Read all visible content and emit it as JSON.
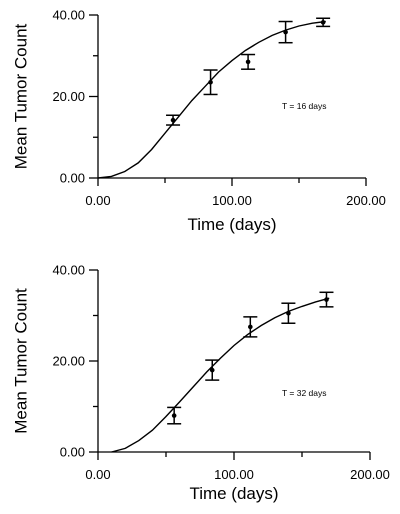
{
  "chart_data": [
    {
      "type": "line",
      "xlabel": "Time (days)",
      "ylabel": "Mean Tumor Count",
      "xlim": [
        0,
        200
      ],
      "ylim": [
        0,
        40
      ],
      "x_ticks": [
        "0.00",
        "100.00",
        "200.00"
      ],
      "y_ticks": [
        "0.00",
        "20.00",
        "40.00"
      ],
      "annotation": "T = 16 days",
      "grid": false,
      "series": [
        {
          "values": [
            {
              "x": 56,
              "y": 14.2,
              "err": 1.2
            },
            {
              "x": 84,
              "y": 23.5,
              "err": 3.0
            },
            {
              "x": 112,
              "y": 28.5,
              "err": 1.8
            },
            {
              "x": 140,
              "y": 35.8,
              "err": 2.6
            },
            {
              "x": 168,
              "y": 38.2,
              "err": 1.0
            }
          ]
        }
      ],
      "fitted_curve": {
        "x": [
          0,
          10,
          20,
          30,
          40,
          50,
          60,
          70,
          80,
          90,
          100,
          110,
          120,
          130,
          140,
          150,
          160,
          170
        ],
        "y": [
          0,
          0.4,
          1.6,
          3.7,
          7.0,
          11.0,
          15.0,
          19.0,
          22.5,
          26.0,
          28.8,
          31.3,
          33.3,
          35.0,
          36.3,
          37.3,
          38.0,
          38.4
        ]
      }
    },
    {
      "type": "line",
      "xlabel": "Time (days)",
      "ylabel": "Mean Tumor Count",
      "xlim": [
        0,
        200
      ],
      "ylim": [
        0,
        40
      ],
      "x_ticks": [
        "0.00",
        "100.00",
        "200.00"
      ],
      "y_ticks": [
        "0.00",
        "20.00",
        "40.00"
      ],
      "annotation": "T = 32 days",
      "grid": false,
      "series": [
        {
          "values": [
            {
              "x": 56,
              "y": 8.0,
              "err": 1.8
            },
            {
              "x": 84,
              "y": 18.0,
              "err": 2.2
            },
            {
              "x": 112,
              "y": 27.5,
              "err": 2.2
            },
            {
              "x": 140,
              "y": 30.5,
              "err": 2.2
            },
            {
              "x": 168,
              "y": 33.5,
              "err": 1.6
            }
          ]
        }
      ],
      "fitted_curve": {
        "x": [
          10,
          20,
          30,
          40,
          50,
          60,
          70,
          80,
          90,
          100,
          110,
          120,
          130,
          140,
          150,
          160,
          170
        ],
        "y": [
          0,
          0.8,
          2.5,
          4.8,
          7.8,
          11.0,
          14.3,
          17.6,
          20.6,
          23.4,
          25.8,
          27.8,
          29.5,
          30.9,
          32.0,
          33.0,
          33.8
        ]
      }
    }
  ]
}
